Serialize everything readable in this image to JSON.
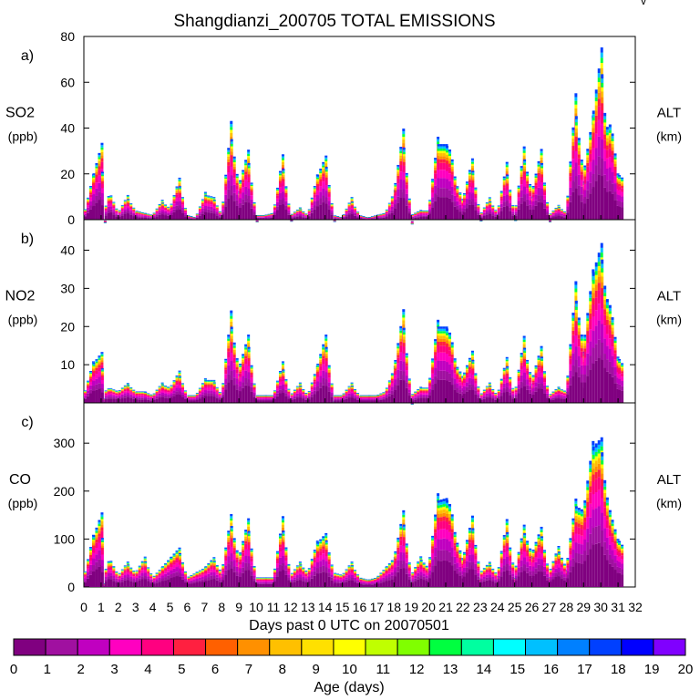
{
  "title": "Shangdianzi_200705 TOTAL EMISSIONS",
  "corner_mark": "v",
  "panel_side_label_top": "ALT",
  "panel_side_label_bottom": "(km)",
  "x_axis": {
    "label": "Days past 0 UTC on 20070501",
    "range": [
      0,
      32
    ],
    "tick_labels": [
      "0",
      "1",
      "2",
      "3",
      "4",
      "5",
      "6",
      "7",
      "8",
      "9",
      "10",
      "11",
      "12",
      "13",
      "14",
      "15",
      "16",
      "17",
      "18",
      "19",
      "20",
      "21",
      "22",
      "23",
      "24",
      "25",
      "26",
      "27",
      "28",
      "29",
      "30",
      "31",
      "32"
    ]
  },
  "colorbar": {
    "label": "Age (days)",
    "tick_labels": [
      "0",
      "1",
      "2",
      "3",
      "4",
      "5",
      "6",
      "7",
      "8",
      "9",
      "10",
      "11",
      "12",
      "13",
      "14",
      "15",
      "16",
      "17",
      "18",
      "19",
      "20"
    ],
    "colors": [
      "#800080",
      "#a010a0",
      "#c000c0",
      "#ff00c0",
      "#ff0080",
      "#ff2040",
      "#ff6000",
      "#ff9000",
      "#ffc000",
      "#ffe000",
      "#ffff00",
      "#c0ff00",
      "#80ff00",
      "#00ff40",
      "#00ffa0",
      "#00ffff",
      "#00c0ff",
      "#0080ff",
      "#0040ff",
      "#0000ff",
      "#8000ff"
    ]
  },
  "chart_data": [
    {
      "type": "area",
      "panel_letter": "a)",
      "species": "SO2",
      "unit": "(ppb)",
      "ylim": [
        0,
        80
      ],
      "y_tick_labels": [
        "0",
        "20",
        "40",
        "60",
        "80"
      ],
      "x": [
        0,
        0.5,
        1,
        1.2,
        1.5,
        2,
        2.5,
        3,
        3.5,
        4,
        4.5,
        5,
        5.5,
        6,
        6.5,
        7,
        7.5,
        8,
        8.5,
        9,
        9.5,
        10,
        10.5,
        11,
        11.5,
        12,
        12.5,
        13,
        13.5,
        14,
        14.5,
        15,
        15.5,
        16,
        16.5,
        17,
        17.5,
        18,
        18.5,
        19,
        19.5,
        20,
        20.5,
        21,
        21.3,
        21.6,
        22,
        22.5,
        23,
        23.5,
        24,
        24.5,
        25,
        25.5,
        26,
        26.5,
        27,
        27.5,
        28,
        28.5,
        29,
        29.5,
        30,
        30.3,
        30.6,
        31,
        31.3
      ],
      "values": [
        2,
        18,
        32,
        4,
        12,
        3,
        10,
        4,
        3,
        2,
        8,
        5,
        17,
        2,
        1,
        11,
        10,
        2,
        39,
        15,
        29,
        2,
        2,
        3,
        26,
        2,
        5,
        2,
        18,
        27,
        2,
        1,
        9,
        2,
        1,
        2,
        3,
        12,
        37,
        2,
        4,
        4,
        33,
        33,
        30,
        16,
        9,
        25,
        2,
        9,
        3,
        23,
        2,
        29,
        12,
        29,
        2,
        6,
        3,
        50,
        20,
        43,
        72,
        40,
        42,
        20,
        18
      ]
    },
    {
      "type": "area",
      "panel_letter": "b)",
      "species": "NO2",
      "unit": "(ppb)",
      "ylim": [
        0,
        48
      ],
      "y_tick_labels": [
        "10",
        "20",
        "30",
        "40"
      ],
      "x": [
        0,
        0.5,
        1,
        1.2,
        1.5,
        2,
        2.5,
        3,
        3.5,
        4,
        4.5,
        5,
        5.5,
        6,
        6.5,
        7,
        7.5,
        8,
        8.5,
        9,
        9.5,
        10,
        10.5,
        11,
        11.5,
        12,
        12.5,
        13,
        13.5,
        14,
        14.5,
        15,
        15.5,
        16,
        16.5,
        17,
        17.5,
        18,
        18.5,
        19,
        19.5,
        20,
        20.5,
        21,
        21.3,
        21.6,
        22,
        22.5,
        23,
        23.5,
        24,
        24.5,
        25,
        25.5,
        26,
        26.5,
        27,
        27.5,
        28,
        28.5,
        29,
        29.5,
        30,
        30.3,
        30.6,
        31,
        31.3
      ],
      "values": [
        2,
        10,
        13,
        3,
        4,
        3,
        5,
        3,
        3,
        2,
        5,
        4,
        8,
        2,
        2,
        6,
        6,
        2,
        22,
        9,
        17,
        2,
        2,
        2,
        10,
        2,
        5,
        2,
        9,
        17,
        2,
        2,
        5,
        2,
        2,
        2,
        3,
        9,
        23,
        2,
        4,
        4,
        20,
        20,
        18,
        10,
        7,
        13,
        2,
        5,
        2,
        11,
        2,
        16,
        6,
        14,
        2,
        4,
        3,
        29,
        15,
        33,
        41,
        28,
        25,
        12,
        10
      ]
    },
    {
      "type": "area",
      "panel_letter": "c)",
      "species": "CO",
      "unit": "(ppb)",
      "ylim": [
        0,
        384
      ],
      "y_tick_labels": [
        "0",
        "100",
        "200",
        "300"
      ],
      "x": [
        0,
        0.5,
        1,
        1.2,
        1.5,
        2,
        2.5,
        3,
        3.5,
        4,
        4.5,
        5,
        5.5,
        6,
        6.5,
        7,
        7.5,
        8,
        8.5,
        9,
        9.5,
        10,
        10.5,
        11,
        11.5,
        12,
        12.5,
        13,
        13.5,
        14,
        14.5,
        15,
        15.5,
        16,
        16.5,
        17,
        17.5,
        18,
        18.5,
        19,
        19.5,
        20,
        20.5,
        21,
        21.3,
        21.6,
        22,
        22.5,
        23,
        23.5,
        24,
        24.5,
        25,
        25.5,
        26,
        26.5,
        27,
        27.5,
        28,
        28.5,
        29,
        29.5,
        30,
        30.3,
        30.6,
        31,
        31.3
      ],
      "values": [
        20,
        100,
        150,
        30,
        60,
        25,
        50,
        30,
        60,
        20,
        40,
        60,
        80,
        20,
        30,
        40,
        60,
        30,
        140,
        60,
        135,
        20,
        20,
        20,
        135,
        25,
        50,
        30,
        90,
        110,
        30,
        25,
        50,
        20,
        15,
        20,
        40,
        60,
        150,
        25,
        60,
        40,
        180,
        185,
        170,
        100,
        60,
        140,
        30,
        50,
        25,
        130,
        30,
        120,
        70,
        120,
        30,
        80,
        40,
        170,
        160,
        290,
        310,
        200,
        150,
        100,
        85
      ]
    }
  ]
}
